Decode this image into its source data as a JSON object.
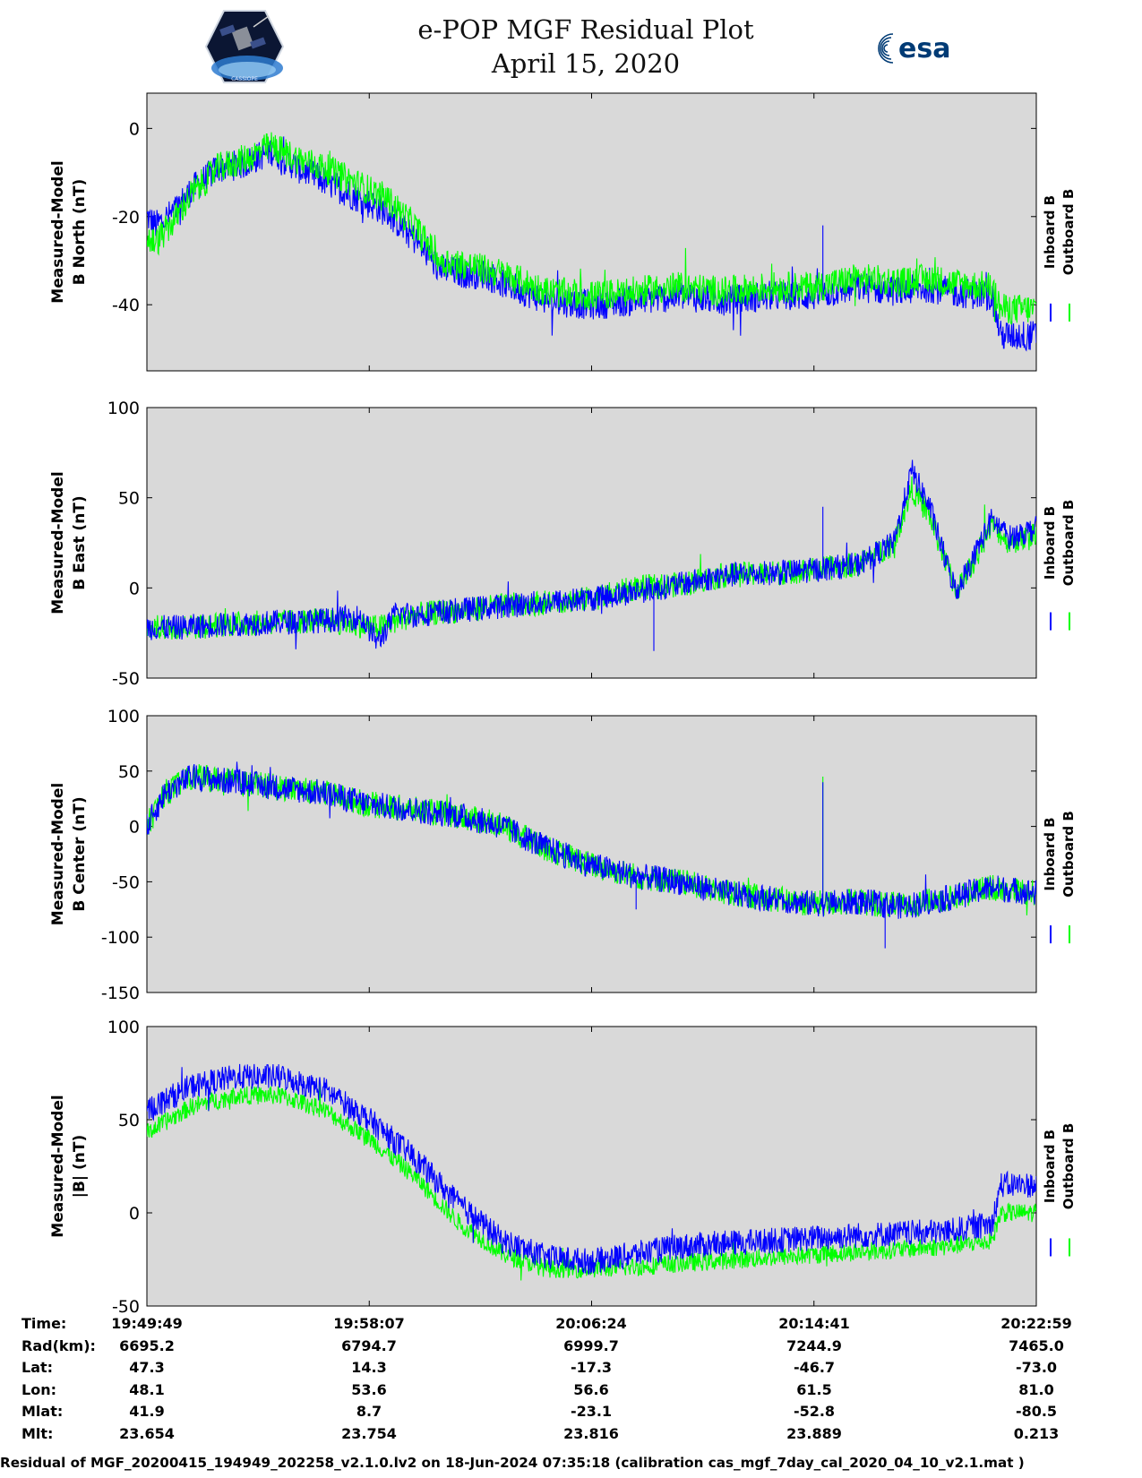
{
  "header": {
    "title_line1": "e-POP MGF Residual Plot",
    "title_line2": "April 15, 2020",
    "left_logo": {
      "icon": "cassiope-satellite-logo",
      "text": "CASSIOPE"
    },
    "right_logo": {
      "icon": "esa-logo",
      "text": "esa",
      "color": "#003b75"
    }
  },
  "colors": {
    "inboard": "#0000ff",
    "outboard": "#00ff00",
    "plot_bg": "#d9d9d9"
  },
  "chart_data": [
    {
      "type": "line",
      "ylabel": [
        "Measured-Model",
        "B North (nT)"
      ],
      "yticks": [
        0,
        -20,
        -40
      ],
      "ylim": [
        -55,
        8
      ],
      "legend": [
        "Inboard B",
        "Outboard B"
      ],
      "series": [
        {
          "name": "Inboard B",
          "color": "#0000ff",
          "trend": [
            [
              0,
              -20
            ],
            [
              1,
              -22
            ],
            [
              3,
              -19
            ],
            [
              5,
              -14
            ],
            [
              8,
              -9
            ],
            [
              11,
              -8
            ],
            [
              14,
              -5
            ],
            [
              17,
              -9
            ],
            [
              20,
              -12
            ],
            [
              24,
              -16
            ],
            [
              27,
              -19
            ],
            [
              30,
              -25
            ],
            [
              33,
              -32
            ],
            [
              36,
              -33
            ],
            [
              38,
              -33
            ],
            [
              40,
              -35
            ],
            [
              45,
              -39
            ],
            [
              50,
              -40
            ],
            [
              55,
              -39
            ],
            [
              60,
              -38
            ],
            [
              65,
              -39
            ],
            [
              70,
              -38
            ],
            [
              75,
              -38
            ],
            [
              80,
              -36
            ],
            [
              85,
              -37
            ],
            [
              88,
              -36
            ],
            [
              90,
              -37
            ],
            [
              95,
              -38
            ],
            [
              96,
              -47
            ],
            [
              100,
              -47
            ]
          ],
          "noise": 3.5,
          "spikes": [
            [
              76,
              -22
            ]
          ]
        },
        {
          "name": "Outboard B",
          "color": "#00ff00",
          "trend": [
            [
              0,
              -25
            ],
            [
              1,
              -26
            ],
            [
              3,
              -21
            ],
            [
              5,
              -15
            ],
            [
              8,
              -9
            ],
            [
              11,
              -7
            ],
            [
              14,
              -4
            ],
            [
              17,
              -7
            ],
            [
              20,
              -9
            ],
            [
              24,
              -13
            ],
            [
              27,
              -16
            ],
            [
              30,
              -22
            ],
            [
              33,
              -30
            ],
            [
              36,
              -31
            ],
            [
              38,
              -32
            ],
            [
              40,
              -33
            ],
            [
              45,
              -37
            ],
            [
              50,
              -38
            ],
            [
              55,
              -37
            ],
            [
              60,
              -36
            ],
            [
              65,
              -37
            ],
            [
              70,
              -36
            ],
            [
              75,
              -36
            ],
            [
              80,
              -34
            ],
            [
              85,
              -35
            ],
            [
              88,
              -34
            ],
            [
              90,
              -35
            ],
            [
              95,
              -36
            ],
            [
              96,
              -41
            ],
            [
              100,
              -41
            ]
          ],
          "noise": 3.5,
          "spikes": []
        }
      ]
    },
    {
      "type": "line",
      "ylabel": [
        "Measured-Model",
        "B East (nT)"
      ],
      "yticks": [
        100,
        50,
        0,
        -50
      ],
      "ylim": [
        -50,
        100
      ],
      "legend": [
        "Inboard B",
        "Outboard B"
      ],
      "series": [
        {
          "name": "Outboard B",
          "color": "#00ff00",
          "trend": [
            [
              0,
              -22
            ],
            [
              3,
              -22
            ],
            [
              10,
              -20
            ],
            [
              20,
              -18
            ],
            [
              26,
              -22
            ],
            [
              30,
              -15
            ],
            [
              40,
              -10
            ],
            [
              50,
              -6
            ],
            [
              55,
              0
            ],
            [
              60,
              2
            ],
            [
              65,
              7
            ],
            [
              70,
              8
            ],
            [
              75,
              10
            ],
            [
              80,
              13
            ],
            [
              84,
              25
            ],
            [
              86,
              55
            ],
            [
              88,
              40
            ],
            [
              90,
              12
            ],
            [
              91,
              -2
            ],
            [
              93,
              15
            ],
            [
              95,
              35
            ],
            [
              97,
              25
            ],
            [
              100,
              30
            ]
          ],
          "noise": 7,
          "spikes": []
        },
        {
          "name": "Inboard B",
          "color": "#0000ff",
          "trend": [
            [
              0,
              -22
            ],
            [
              3,
              -22
            ],
            [
              10,
              -20
            ],
            [
              20,
              -18
            ],
            [
              24,
              -16
            ],
            [
              26,
              -30
            ],
            [
              28,
              -14
            ],
            [
              30,
              -15
            ],
            [
              40,
              -10
            ],
            [
              50,
              -6
            ],
            [
              55,
              -2
            ],
            [
              60,
              2
            ],
            [
              65,
              7
            ],
            [
              70,
              8
            ],
            [
              75,
              10
            ],
            [
              80,
              13
            ],
            [
              84,
              25
            ],
            [
              86,
              65
            ],
            [
              88,
              45
            ],
            [
              90,
              12
            ],
            [
              91,
              -2
            ],
            [
              93,
              18
            ],
            [
              95,
              38
            ],
            [
              97,
              28
            ],
            [
              100,
              33
            ]
          ],
          "noise": 7,
          "spikes": [
            [
              76,
              45
            ],
            [
              57,
              -35
            ]
          ]
        }
      ]
    },
    {
      "type": "line",
      "ylabel": [
        "Measured-Model",
        "B Center (nT)"
      ],
      "yticks": [
        100,
        50,
        0,
        -50,
        -100,
        -150
      ],
      "ylim": [
        -150,
        100
      ],
      "legend": [
        "Inboard B",
        "Outboard B"
      ],
      "series": [
        {
          "name": "Outboard B",
          "color": "#00ff00",
          "trend": [
            [
              0,
              0
            ],
            [
              2,
              30
            ],
            [
              5,
              45
            ],
            [
              10,
              40
            ],
            [
              15,
              35
            ],
            [
              20,
              30
            ],
            [
              25,
              20
            ],
            [
              30,
              15
            ],
            [
              35,
              10
            ],
            [
              40,
              0
            ],
            [
              45,
              -20
            ],
            [
              50,
              -35
            ],
            [
              55,
              -45
            ],
            [
              60,
              -50
            ],
            [
              65,
              -60
            ],
            [
              70,
              -65
            ],
            [
              75,
              -70
            ],
            [
              80,
              -68
            ],
            [
              85,
              -72
            ],
            [
              90,
              -65
            ],
            [
              95,
              -55
            ],
            [
              100,
              -60
            ]
          ],
          "noise": 12,
          "spikes": [
            [
              76,
              45
            ]
          ]
        },
        {
          "name": "Inboard B",
          "color": "#0000ff",
          "trend": [
            [
              0,
              0
            ],
            [
              2,
              30
            ],
            [
              5,
              45
            ],
            [
              10,
              40
            ],
            [
              15,
              35
            ],
            [
              20,
              30
            ],
            [
              25,
              20
            ],
            [
              30,
              15
            ],
            [
              35,
              10
            ],
            [
              40,
              0
            ],
            [
              45,
              -20
            ],
            [
              50,
              -35
            ],
            [
              55,
              -45
            ],
            [
              60,
              -50
            ],
            [
              65,
              -60
            ],
            [
              70,
              -65
            ],
            [
              75,
              -70
            ],
            [
              80,
              -68
            ],
            [
              85,
              -72
            ],
            [
              90,
              -65
            ],
            [
              95,
              -55
            ],
            [
              100,
              -60
            ]
          ],
          "noise": 12,
          "spikes": [
            [
              76,
              40
            ],
            [
              83,
              -110
            ],
            [
              55,
              -75
            ]
          ]
        }
      ]
    },
    {
      "type": "line",
      "ylabel": [
        "Measured-Model",
        "|B| (nT)"
      ],
      "yticks": [
        100,
        50,
        0,
        -50
      ],
      "ylim": [
        -50,
        100
      ],
      "legend": [
        "Inboard B",
        "Outboard B"
      ],
      "series": [
        {
          "name": "Outboard B",
          "color": "#00ff00",
          "trend": [
            [
              0,
              43
            ],
            [
              5,
              57
            ],
            [
              10,
              63
            ],
            [
              15,
              63
            ],
            [
              20,
              55
            ],
            [
              25,
              40
            ],
            [
              30,
              20
            ],
            [
              35,
              -5
            ],
            [
              40,
              -22
            ],
            [
              45,
              -30
            ],
            [
              50,
              -30
            ],
            [
              55,
              -29
            ],
            [
              60,
              -27
            ],
            [
              70,
              -24
            ],
            [
              80,
              -21
            ],
            [
              90,
              -18
            ],
            [
              95,
              -15
            ],
            [
              96,
              0
            ],
            [
              100,
              0
            ]
          ],
          "noise": 5,
          "spikes": []
        },
        {
          "name": "Inboard B",
          "color": "#0000ff",
          "trend": [
            [
              0,
              55
            ],
            [
              5,
              68
            ],
            [
              10,
              73
            ],
            [
              15,
              73
            ],
            [
              20,
              66
            ],
            [
              25,
              50
            ],
            [
              30,
              30
            ],
            [
              35,
              5
            ],
            [
              40,
              -15
            ],
            [
              45,
              -24
            ],
            [
              50,
              -26
            ],
            [
              55,
              -22
            ],
            [
              60,
              -18
            ],
            [
              70,
              -15
            ],
            [
              80,
              -12
            ],
            [
              90,
              -10
            ],
            [
              95,
              -6
            ],
            [
              96,
              15
            ],
            [
              100,
              15
            ]
          ],
          "noise": 7,
          "spikes": []
        }
      ]
    }
  ],
  "ephemeris": {
    "labels": [
      "Time:",
      "Rad(km):",
      "Lat:",
      "Lon:",
      "Mlat:",
      "Mlt:"
    ],
    "columns": [
      [
        "19:49:49",
        "6695.2",
        "47.3",
        "48.1",
        "41.9",
        "23.654"
      ],
      [
        "19:58:07",
        "6794.7",
        "14.3",
        "53.6",
        "8.7",
        "23.754"
      ],
      [
        "20:06:24",
        "6999.7",
        "-17.3",
        "56.6",
        "-23.1",
        "23.816"
      ],
      [
        "20:14:41",
        "7244.9",
        "-46.7",
        "61.5",
        "-52.8",
        "23.889"
      ],
      [
        "20:22:59",
        "7465.0",
        "-73.0",
        "81.0",
        "-80.5",
        "0.213"
      ]
    ]
  },
  "footer": "Residual of MGF_20200415_194949_202258_v2.1.0.lv2 on 18-Jun-2024 07:35:18 (calibration cas_mgf_7day_cal_2020_04_10_v2.1.mat )"
}
